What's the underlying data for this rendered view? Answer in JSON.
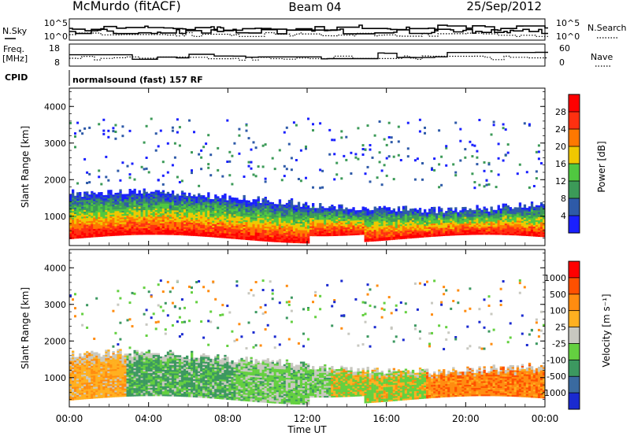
{
  "header": {
    "title": "McMurdo (fitACF)",
    "beam": "Beam 04",
    "date": "25/Sep/2012",
    "cpid_label": "CPID",
    "cpid_value": "normalsound (fast) 157 RF"
  },
  "chart_data": [
    {
      "panel": "noise",
      "type": "line",
      "left_axis": {
        "label": "N.Sky",
        "ticks": [
          "10^5",
          "10^0"
        ]
      },
      "right_axis": {
        "label": "N.Search",
        "ticks": [
          "10^5",
          "10^0"
        ]
      }
    },
    {
      "panel": "frequency",
      "type": "line",
      "left_axis": {
        "label_top": "Freq.",
        "label_bottom": "[MHz]",
        "ylim": [
          8,
          18
        ],
        "ticks": [
          "18",
          "8"
        ]
      },
      "right_axis": {
        "label": "Nave",
        "ylim": [
          0,
          60
        ],
        "ticks": [
          "60",
          "0"
        ]
      }
    },
    {
      "panel": "power",
      "type": "heatmap",
      "xlabel": "",
      "ylabel": "Slant Range [km]",
      "yticks": [
        "1000",
        "2000",
        "3000",
        "4000"
      ],
      "colorbar": {
        "label": "Power [dB]",
        "ticks": [
          "4",
          "8",
          "12",
          "16",
          "20",
          "24",
          "28"
        ],
        "colors": [
          "#1a20ff",
          "#2e5aa8",
          "#3c9a58",
          "#50c840",
          "#f0c800",
          "#ff7800",
          "#ff3010",
          "#ff0000"
        ]
      }
    },
    {
      "panel": "velocity",
      "type": "heatmap",
      "xlabel": "Time UT",
      "ylabel": "Slant Range [km]",
      "xticks": [
        "00:00",
        "04:00",
        "08:00",
        "12:00",
        "16:00",
        "20:00",
        "00:00"
      ],
      "yticks": [
        "1000",
        "2000",
        "3000",
        "4000"
      ],
      "colorbar": {
        "label": "Velocity [m s⁻¹]",
        "ticks": [
          "1000",
          "500",
          "100",
          "25",
          "-25",
          "-100",
          "-500",
          "-1000"
        ],
        "colors": [
          "#1a2ad0",
          "#3a6aa0",
          "#3c9860",
          "#64d040",
          "#c8c8c0",
          "#ffb020",
          "#ff8c10",
          "#ff5000",
          "#ff0000"
        ]
      }
    }
  ]
}
